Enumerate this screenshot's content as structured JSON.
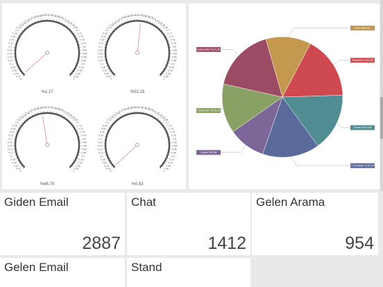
{
  "gauges": {
    "scale": {
      "min": 0,
      "max": 1,
      "ticks": [
        0,
        0.02,
        0.04,
        0.06,
        0.08,
        0.1,
        0.12,
        0.14,
        0.16,
        0.18,
        0.2,
        0.22,
        0.24,
        0.26,
        0.28,
        0.3,
        0.32,
        0.34,
        0.36,
        0.38,
        0.4,
        0.42,
        0.44,
        0.46,
        0.48,
        0.5,
        0.52,
        0.54,
        0.56,
        0.58,
        0.6,
        0.62,
        0.64,
        0.66,
        0.68,
        0.7,
        0.72,
        0.74,
        0.76,
        0.78,
        0.8,
        0.82,
        0.84,
        0.86,
        0.88,
        0.9,
        0.92,
        0.94,
        0.96,
        0.98,
        1
      ]
    },
    "items": [
      {
        "value": 0.0117,
        "label": "%1,17"
      },
      {
        "value": 0.5218,
        "label": "%52,18"
      },
      {
        "value": 0.467,
        "label": "%46,70"
      },
      {
        "value": 0.0083,
        "label": "%0,83"
      }
    ]
  },
  "pie": {
    "type": "pie",
    "labels": [
      "Salı %12,13",
      "Pazartesi %16,84",
      "Pazar %15,48",
      "Cumartesi %15,29",
      "Cuma %9,96",
      "Perşembe %13,24",
      "Çarşamba %17,06"
    ],
    "values": [
      12.13,
      16.84,
      15.48,
      15.29,
      9.96,
      13.24,
      17.06
    ],
    "colors": [
      "#c4994f",
      "#cf4a50",
      "#4f8d93",
      "#5a6a9b",
      "#7d6798",
      "#8aa165",
      "#9b4b63"
    ]
  },
  "cards": [
    {
      "title": "Giden Email",
      "value": 2887
    },
    {
      "title": "Chat",
      "value": 1412
    },
    {
      "title": "Gelen Arama",
      "value": 954
    },
    {
      "title": "Gelen Email"
    },
    {
      "title": "Stand"
    }
  ]
}
